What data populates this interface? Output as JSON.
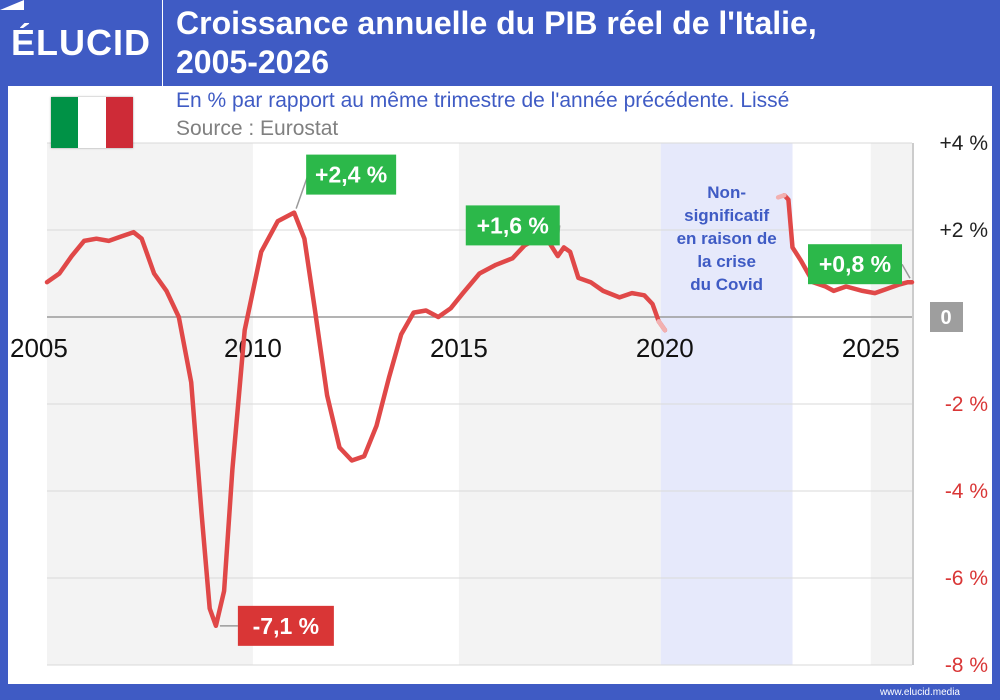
{
  "header": {
    "logo": "ÉLUCID",
    "title_line1": "Croissance annuelle du PIB réel de l'Italie,",
    "title_line2": "2005-2026"
  },
  "subtitle": "En % par rapport au même trimestre de l'année précédente. Lissé",
  "source": "Source : Eurostat",
  "footer": "www.elucid.media",
  "flag_colors": [
    "#009246",
    "#ffffff",
    "#ce2b37"
  ],
  "colors": {
    "line": "#e04848",
    "positive_label": "#2cb84a",
    "negative_label": "#d93636",
    "covid_band": "#e6e9fb",
    "covid_text": "#3f5bc4",
    "zero_badge": "#9e9e9e"
  },
  "chart_data": {
    "type": "line",
    "title": "Croissance annuelle du PIB réel de l'Italie, 2005-2026",
    "subtitle": "En % par rapport au même trimestre de l'année précédente. Lissé",
    "xlim": [
      2005,
      2026
    ],
    "ylim": [
      -8,
      4
    ],
    "x_ticks": [
      2005,
      2010,
      2015,
      2020,
      2025
    ],
    "y_ticks": [
      {
        "value": 4,
        "label": "+4 %"
      },
      {
        "value": 2,
        "label": "+2 %"
      },
      {
        "value": 0,
        "label": "0"
      },
      {
        "value": -2,
        "label": "-2 %"
      },
      {
        "value": -4,
        "label": "-4 %"
      },
      {
        "value": -6,
        "label": "-6 %"
      },
      {
        "value": -8,
        "label": "-8 %"
      }
    ],
    "grid": true,
    "covid_band": {
      "from": 2019.9,
      "to": 2023.1,
      "text": [
        "Non-",
        "significatif",
        "en raison de",
        "la crise",
        "du Covid"
      ]
    },
    "series": [
      {
        "segment": "before_covid",
        "points": [
          [
            2005.0,
            0.8
          ],
          [
            2005.3,
            1.0
          ],
          [
            2005.6,
            1.4
          ],
          [
            2005.9,
            1.75
          ],
          [
            2006.2,
            1.8
          ],
          [
            2006.5,
            1.75
          ],
          [
            2006.8,
            1.85
          ],
          [
            2007.1,
            1.95
          ],
          [
            2007.3,
            1.8
          ],
          [
            2007.6,
            1.0
          ],
          [
            2007.9,
            0.6
          ],
          [
            2008.2,
            0.0
          ],
          [
            2008.5,
            -1.5
          ],
          [
            2008.75,
            -4.5
          ],
          [
            2008.95,
            -6.7
          ],
          [
            2009.1,
            -7.1
          ],
          [
            2009.3,
            -6.3
          ],
          [
            2009.5,
            -3.5
          ],
          [
            2009.8,
            -0.3
          ],
          [
            2010.2,
            1.5
          ],
          [
            2010.6,
            2.2
          ],
          [
            2011.0,
            2.4
          ],
          [
            2011.25,
            1.8
          ],
          [
            2011.5,
            0.2
          ],
          [
            2011.8,
            -1.8
          ],
          [
            2012.1,
            -3.0
          ],
          [
            2012.4,
            -3.3
          ],
          [
            2012.7,
            -3.2
          ],
          [
            2013.0,
            -2.5
          ],
          [
            2013.3,
            -1.4
          ],
          [
            2013.6,
            -0.4
          ],
          [
            2013.9,
            0.1
          ],
          [
            2014.2,
            0.15
          ],
          [
            2014.5,
            0.0
          ],
          [
            2014.8,
            0.2
          ],
          [
            2015.1,
            0.55
          ],
          [
            2015.5,
            1.0
          ],
          [
            2015.9,
            1.2
          ],
          [
            2016.3,
            1.35
          ],
          [
            2016.6,
            1.65
          ],
          [
            2016.9,
            1.8
          ],
          [
            2017.2,
            1.7
          ],
          [
            2017.4,
            1.4
          ],
          [
            2017.55,
            1.6
          ],
          [
            2017.7,
            1.5
          ],
          [
            2017.9,
            0.9
          ],
          [
            2018.2,
            0.8
          ],
          [
            2018.5,
            0.6
          ],
          [
            2018.9,
            0.45
          ],
          [
            2019.2,
            0.55
          ],
          [
            2019.5,
            0.5
          ],
          [
            2019.7,
            0.3
          ],
          [
            2019.85,
            -0.1
          ],
          [
            2020.0,
            -0.3
          ]
        ]
      },
      {
        "segment": "after_covid",
        "points": [
          [
            2022.9,
            2.8
          ],
          [
            2023.0,
            2.7
          ],
          [
            2023.1,
            1.6
          ],
          [
            2023.3,
            1.3
          ],
          [
            2023.6,
            0.8
          ],
          [
            2023.9,
            0.7
          ],
          [
            2024.1,
            0.6
          ],
          [
            2024.4,
            0.7
          ],
          [
            2024.8,
            0.6
          ],
          [
            2025.1,
            0.55
          ],
          [
            2025.4,
            0.65
          ],
          [
            2025.7,
            0.75
          ],
          [
            2025.9,
            0.8
          ],
          [
            2026.0,
            0.8
          ]
        ]
      }
    ],
    "annotations": [
      {
        "x": 2009.1,
        "y": -7.1,
        "text": "-7,1 %",
        "sign": "negative"
      },
      {
        "x": 2011.0,
        "y": 2.4,
        "text": "+2,4 %",
        "sign": "positive"
      },
      {
        "x": 2017.4,
        "y": 1.6,
        "text": "+1,6 %",
        "sign": "positive"
      },
      {
        "x": 2026.0,
        "y": 0.8,
        "text": "+0,8 %",
        "sign": "positive"
      }
    ]
  }
}
